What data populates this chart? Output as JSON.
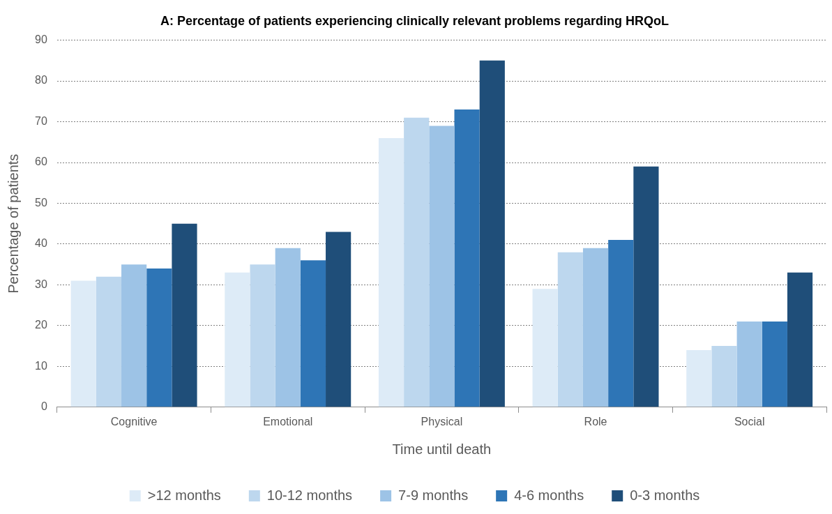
{
  "chart_data": {
    "type": "bar",
    "title": "A: Percentage of patients experiencing clinically relevant problems regarding HRQoL",
    "xlabel": "Time until death",
    "ylabel": "Percentage of patients",
    "categories": [
      "Cognitive",
      "Emotional",
      "Physical",
      "Role",
      "Social"
    ],
    "series": [
      {
        "name": ">12 months",
        "color": "#ddebf7",
        "values": [
          31,
          33,
          66,
          29,
          14
        ]
      },
      {
        "name": "10-12 months",
        "color": "#bdd7ee",
        "values": [
          32,
          35,
          71,
          38,
          15
        ]
      },
      {
        "name": "7-9 months",
        "color": "#9dc3e6",
        "values": [
          35,
          39,
          69,
          39,
          21
        ]
      },
      {
        "name": "4-6 months",
        "color": "#2e75b6",
        "values": [
          34,
          36,
          73,
          41,
          21
        ]
      },
      {
        "name": "0-3 months",
        "color": "#1f4e79",
        "values": [
          45,
          43,
          85,
          59,
          33
        ]
      }
    ],
    "ylim": [
      0,
      90
    ],
    "yticks": [
      0,
      10,
      20,
      30,
      40,
      50,
      60,
      70,
      80,
      90
    ],
    "grid": "y",
    "legend": "bottom"
  }
}
